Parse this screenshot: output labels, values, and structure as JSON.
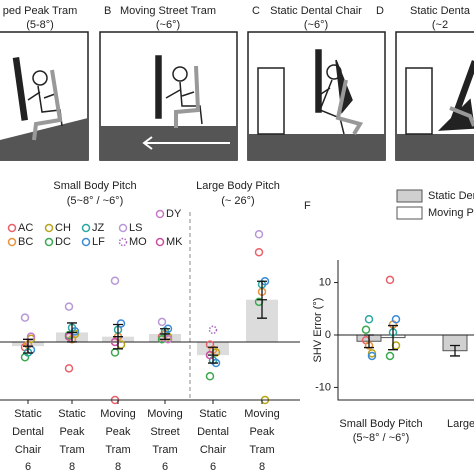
{
  "panels": [
    {
      "letter": null,
      "title": "ped Peak Tram",
      "subtitle": "(5-8°)"
    },
    {
      "letter": "B",
      "title": "Moving Street Tram",
      "subtitle": "(~6°)"
    },
    {
      "letter": "C",
      "title": "Static Dental Chair",
      "subtitle": "(~6°)"
    },
    {
      "letter": "D",
      "title": "Static Denta",
      "subtitle": "(~2"
    }
  ],
  "chart_data": [
    {
      "type": "bar",
      "groups": [
        {
          "title": "Small Body Pitch",
          "subtitle": "(5~8° / ~6°)"
        },
        {
          "title": "Large Body Pitch",
          "subtitle": "(~ 26°)"
        }
      ],
      "categories": [
        "Static\nDental\nChair",
        "Static\nPeak\nTram",
        "Moving\nPeak\nTram",
        "Moving\nStreet\nTram",
        "Static\nDental\nChair",
        "Moving\nPeak\nTram"
      ],
      "n": [
        "6",
        "8",
        "8",
        "6",
        "6",
        "8"
      ],
      "values": [
        -0.8,
        1.8,
        1.0,
        1.5,
        -2.5,
        8.0
      ],
      "errors": [
        1.3,
        1.8,
        2.3,
        1.0,
        1.5,
        3.5
      ],
      "color": "#dcdcdc",
      "ylim": [
        -11,
        25
      ],
      "series": [
        {
          "name": "AC",
          "color": "#e8606a",
          "values": [
            -1.0,
            -5.0,
            -11.0,
            1.0,
            -0.5,
            17.0
          ]
        },
        {
          "name": "BC",
          "color": "#e8923c",
          "values": [
            -0.5,
            0.5,
            1.0,
            1.5,
            -1.5,
            9.5
          ]
        },
        {
          "name": "CH",
          "color": "#b8a418",
          "values": [
            0.6,
            1.5,
            -0.5,
            1.0,
            -2.0,
            -11.0
          ]
        },
        {
          "name": "DC",
          "color": "#3aa850",
          "values": [
            -2.9,
            1.3,
            -2.0,
            0.5,
            -6.5,
            7.6
          ]
        },
        {
          "name": "JZ",
          "color": "#2aa8a0",
          "values": [
            -2.0,
            2.7,
            2.3,
            2.0,
            -3.5,
            10.9
          ]
        },
        {
          "name": "LF",
          "color": "#3a8ad8",
          "values": [
            -1.5,
            2.0,
            3.5,
            2.5,
            -4.0,
            11.5
          ]
        },
        {
          "name": "LS",
          "color": "#b898d8",
          "values": [
            4.6,
            6.7,
            11.6,
            3.8,
            null,
            20.4
          ]
        },
        {
          "name": "MO",
          "color": "#a868c0",
          "values": [
            null,
            null,
            null,
            null,
            2.3,
            null
          ]
        },
        {
          "name": "DY",
          "color": "#c878c8",
          "values": [
            1.0,
            null,
            null,
            0.5,
            null,
            null
          ]
        },
        {
          "name": "MK",
          "color": "#c850a0",
          "values": [
            null,
            1.0,
            0.0,
            null,
            -2.5,
            null
          ]
        }
      ]
    },
    {
      "type": "bar",
      "letter": "F",
      "ylabel": "SHV Error (°)",
      "categories": [
        "Small Body Pitch\n(5~8° / ~6°)",
        "Large"
      ],
      "ylim": [
        -12.4,
        14.3
      ],
      "yticks": [
        -10,
        0,
        10
      ],
      "series": [
        {
          "name": "Static Den",
          "color": "#d0d0d0",
          "values": [
            -1.2,
            -3.0
          ],
          "errors": [
            1.2,
            1.0
          ],
          "points": [
            [
              -1.0,
              -2.0,
              -3.5,
              1.0,
              3.0,
              -4.0
            ],
            []
          ]
        },
        {
          "name": "Moving Pe",
          "color": "#ffffff",
          "values": [
            -0.5,
            null
          ],
          "errors": [
            2.3,
            null
          ],
          "points": [
            [
              10.5,
              2.0,
              -2.0,
              -4.0,
              0.5,
              3.0
            ],
            []
          ]
        }
      ]
    }
  ]
}
